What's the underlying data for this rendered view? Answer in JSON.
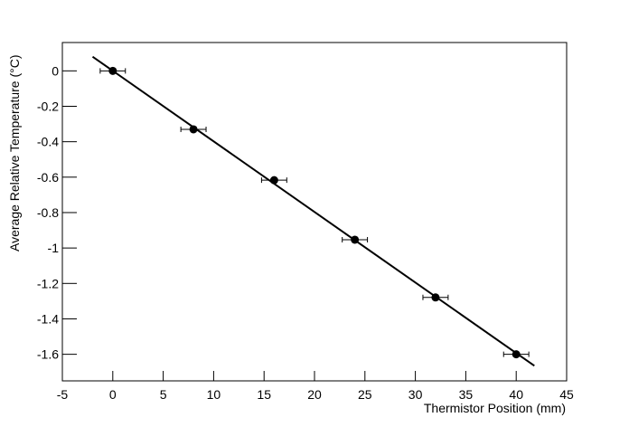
{
  "chart_data": {
    "type": "scatter",
    "x_label": "Thermistor Position (mm)",
    "y_label": "Average Relative Temperature (°C)",
    "xlim": [
      -5,
      45
    ],
    "xticks": [
      -5,
      0,
      5,
      10,
      15,
      20,
      25,
      30,
      35,
      40,
      45
    ],
    "ylim": [
      -1.75,
      0.16
    ],
    "yticks": [
      -1.6,
      -1.4,
      -1.2,
      -1,
      -0.8,
      -0.6,
      -0.4,
      -0.2,
      0
    ],
    "points": {
      "color": "#000000",
      "x": [
        0,
        8,
        16,
        24,
        32,
        40
      ],
      "values": [
        0,
        -0.33,
        -0.617,
        -0.953,
        -1.279,
        -1.6
      ],
      "xerr": [
        1.25,
        1.25,
        1.25,
        1.25,
        1.25,
        1.25
      ]
    },
    "fit": {
      "color": "#000000",
      "x": [
        -2,
        41.8
      ],
      "values": [
        0.08,
        -1.665
      ]
    }
  }
}
